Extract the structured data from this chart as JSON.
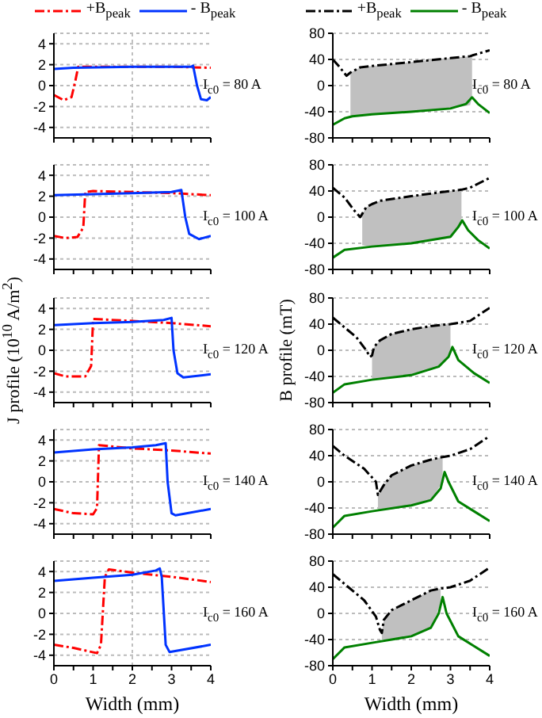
{
  "chart_data": [
    {
      "type": "line",
      "legend": "top",
      "annotations": [
        "I$_{c0}$ = 80 A"
      ],
      "xlim": [
        0,
        4
      ],
      "xticks": [
        0,
        {
          "value": 0.5,
          "label": null
        },
        1,
        {
          "value": 1.5,
          "label": null
        },
        2,
        {
          "value": 2.5,
          "label": null
        },
        3,
        {
          "value": 3.5,
          "label": null
        },
        4
      ],
      "ylim": [
        -5,
        5
      ],
      "yticks": [
        -4,
        -2,
        0,
        2,
        4
      ],
      "grid": "y",
      "tick_labels": "y",
      "ref_lines": [
        {
          "axis": "x",
          "value": 2,
          "color": "#c0c0c0",
          "line_style": "dotted"
        }
      ],
      "series": [
        {
          "name": "+B$_{peak}$",
          "color": "#ff0000",
          "line_style": "dashed",
          "x": [
            0,
            0.25,
            0.45,
            0.55,
            0.62,
            1,
            2,
            3,
            4
          ],
          "values": [
            -0.9,
            -1.4,
            -1.1,
            0.5,
            1.8,
            1.8,
            1.8,
            1.8,
            1.7
          ]
        },
        {
          "name": "- B$_{peak}$",
          "color": "#0033ff",
          "line_style": "solid",
          "x": [
            0,
            0.5,
            2,
            3.5,
            3.55,
            3.65,
            3.75,
            3.9,
            4
          ],
          "values": [
            1.6,
            1.7,
            1.8,
            1.8,
            1.9,
            0,
            -1.3,
            -1.4,
            -1.1
          ]
        }
      ]
    },
    {
      "type": "line",
      "legend": "top",
      "annotations": [
        "I$_{c0}$ = 80 A"
      ],
      "xlim": [
        0,
        4
      ],
      "xticks": [
        0,
        {
          "value": 0.5,
          "label": null
        },
        1,
        {
          "value": 1.5,
          "label": null
        },
        2,
        {
          "value": 2.5,
          "label": null
        },
        3,
        {
          "value": 3.5,
          "label": null
        },
        4
      ],
      "ylim": [
        -80,
        80
      ],
      "yticks": [
        -80,
        -40,
        0,
        40,
        80
      ],
      "grid": "y",
      "tick_labels": "y",
      "series": [
        {
          "name": "+B$_{peak}$",
          "color": "#000000",
          "line_style": "dashed",
          "x": [
            0,
            0.15,
            0.35,
            0.45,
            0.7,
            1,
            2,
            3,
            3.5,
            3.55,
            4
          ],
          "values": [
            40,
            30,
            15,
            20,
            28,
            30,
            36,
            42,
            45,
            46,
            54
          ],
          "lower": [
            null,
            null,
            null,
            -47,
            -46,
            -44,
            -40,
            -35,
            -30,
            -18,
            null
          ],
          "upper": [
            null,
            null,
            null,
            20,
            28,
            30,
            36,
            42,
            45,
            46,
            null
          ]
        },
        {
          "name": "- B$_{peak}$",
          "color": "#008000",
          "line_style": "solid",
          "x": [
            0,
            0.3,
            0.5,
            1,
            2,
            3,
            3.4,
            3.55,
            3.7,
            4
          ],
          "values": [
            -60,
            -50,
            -47,
            -44,
            -40,
            -35,
            -28,
            -18,
            -28,
            -42
          ]
        }
      ]
    },
    {
      "type": "line",
      "annotations": [
        "I$_{c0}$ = 100 A"
      ],
      "xlim": [
        0,
        4
      ],
      "xticks": [
        0,
        {
          "value": 0.5,
          "label": null
        },
        1,
        {
          "value": 1.5,
          "label": null
        },
        2,
        {
          "value": 2.5,
          "label": null
        },
        3,
        {
          "value": 3.5,
          "label": null
        },
        4
      ],
      "ylim": [
        -5,
        5
      ],
      "yticks": [
        -4,
        -2,
        0,
        2,
        4
      ],
      "grid": "y",
      "tick_labels": "y",
      "ref_lines": [
        {
          "axis": "x",
          "value": 2,
          "color": "#c0c0c0",
          "line_style": "dotted"
        }
      ],
      "series": [
        {
          "color": "#ff0000",
          "line_style": "dashed",
          "x": [
            0,
            0.3,
            0.6,
            0.75,
            0.8,
            1,
            2,
            3,
            4
          ],
          "values": [
            -1.8,
            -2,
            -1.9,
            -1,
            2.4,
            2.5,
            2.4,
            2.3,
            2.1
          ]
        },
        {
          "color": "#0033ff",
          "line_style": "solid",
          "x": [
            0,
            1,
            2,
            3,
            3.25,
            3.35,
            3.45,
            3.7,
            4
          ],
          "values": [
            2.1,
            2.2,
            2.3,
            2.4,
            2.6,
            0,
            -1.6,
            -2.1,
            -1.8
          ]
        }
      ]
    },
    {
      "type": "line",
      "annotations": [
        "I$_{c0}$ = 100 A"
      ],
      "xlim": [
        0,
        4
      ],
      "xticks": [
        0,
        {
          "value": 0.5,
          "label": null
        },
        1,
        {
          "value": 1.5,
          "label": null
        },
        2,
        {
          "value": 2.5,
          "label": null
        },
        3,
        {
          "value": 3.5,
          "label": null
        },
        4
      ],
      "ylim": [
        -80,
        80
      ],
      "yticks": [
        -80,
        -40,
        0,
        40,
        80
      ],
      "grid": "y",
      "tick_labels": "y",
      "series": [
        {
          "color": "#000000",
          "line_style": "dashed",
          "x": [
            0,
            0.3,
            0.55,
            0.7,
            0.75,
            0.85,
            1,
            1.2,
            2,
            3,
            3.28,
            3.5,
            4
          ],
          "values": [
            45,
            30,
            10,
            0,
            5,
            15,
            20,
            25,
            32,
            40,
            42,
            45,
            60
          ],
          "lower": [
            null,
            null,
            null,
            null,
            -43,
            -44,
            -44,
            -44,
            -40,
            -32,
            -8,
            null,
            null
          ],
          "upper": [
            null,
            null,
            null,
            null,
            5,
            15,
            20,
            25,
            32,
            40,
            42,
            null,
            null
          ]
        },
        {
          "color": "#008000",
          "line_style": "solid",
          "x": [
            0,
            0.3,
            1,
            2,
            3,
            3.2,
            3.3,
            3.45,
            3.7,
            4
          ],
          "values": [
            -62,
            -50,
            -45,
            -40,
            -30,
            -15,
            -5,
            -20,
            -35,
            -48
          ]
        }
      ]
    },
    {
      "type": "line",
      "ylabel": "J profile (10$^{10}$ A/m$^{2}$)",
      "annotations": [
        "I$_{c0}$ = 120 A"
      ],
      "xlim": [
        0,
        4
      ],
      "xticks": [
        0,
        {
          "value": 0.5,
          "label": null
        },
        1,
        {
          "value": 1.5,
          "label": null
        },
        2,
        {
          "value": 2.5,
          "label": null
        },
        3,
        {
          "value": 3.5,
          "label": null
        },
        4
      ],
      "ylim": [
        -5,
        5
      ],
      "yticks": [
        -4,
        -2,
        0,
        2,
        4
      ],
      "grid": "y",
      "tick_labels": "y",
      "ref_lines": [
        {
          "axis": "x",
          "value": 2,
          "color": "#c0c0c0",
          "line_style": "dotted"
        }
      ],
      "series": [
        {
          "color": "#ff0000",
          "line_style": "dashed",
          "x": [
            0,
            0.3,
            0.8,
            0.95,
            1,
            2,
            3,
            4
          ],
          "values": [
            -2.2,
            -2.5,
            -2.5,
            -1.5,
            3,
            2.8,
            2.6,
            2.3
          ]
        },
        {
          "color": "#0033ff",
          "line_style": "solid",
          "x": [
            0,
            1,
            2,
            2.8,
            3,
            3.05,
            3.15,
            3.3,
            4
          ],
          "values": [
            2.4,
            2.6,
            2.7,
            2.9,
            3.1,
            0,
            -2.2,
            -2.6,
            -2.3
          ]
        }
      ]
    },
    {
      "type": "line",
      "ylabel": "B profile (mT)",
      "annotations": [
        "I$_{c0}$ = 120 A"
      ],
      "xlim": [
        0,
        4
      ],
      "xticks": [
        0,
        {
          "value": 0.5,
          "label": null
        },
        1,
        {
          "value": 1.5,
          "label": null
        },
        2,
        {
          "value": 2.5,
          "label": null
        },
        3,
        {
          "value": 3.5,
          "label": null
        },
        4
      ],
      "ylim": [
        -80,
        80
      ],
      "yticks": [
        -80,
        -40,
        0,
        40,
        80
      ],
      "grid": "y",
      "tick_labels": "y",
      "series": [
        {
          "color": "#000000",
          "line_style": "dashed",
          "x": [
            0,
            0.3,
            0.6,
            0.85,
            0.95,
            1,
            1.05,
            1.2,
            1.5,
            2,
            2.5,
            2.8,
            3,
            3.5,
            4
          ],
          "values": [
            50,
            35,
            20,
            0,
            -10,
            -8,
            5,
            15,
            25,
            32,
            37,
            39,
            40,
            45,
            65
          ],
          "lower": [
            null,
            null,
            null,
            null,
            null,
            -44,
            -44,
            -43,
            -41,
            -38,
            -30,
            -20,
            -2,
            null,
            null
          ],
          "upper": [
            null,
            null,
            null,
            null,
            null,
            -8,
            5,
            15,
            25,
            32,
            37,
            39,
            40,
            null,
            null
          ]
        },
        {
          "color": "#008000",
          "line_style": "solid",
          "x": [
            0,
            0.3,
            1,
            2,
            2.7,
            2.95,
            3.05,
            3.2,
            3.6,
            4
          ],
          "values": [
            -65,
            -52,
            -45,
            -38,
            -25,
            -10,
            5,
            -15,
            -35,
            -50
          ]
        }
      ]
    },
    {
      "type": "line",
      "annotations": [
        "I$_{c0}$ = 140 A"
      ],
      "xlim": [
        0,
        4
      ],
      "xticks": [
        0,
        {
          "value": 0.5,
          "label": null
        },
        1,
        {
          "value": 1.5,
          "label": null
        },
        2,
        {
          "value": 2.5,
          "label": null
        },
        3,
        {
          "value": 3.5,
          "label": null
        },
        4
      ],
      "ylim": [
        -5,
        5
      ],
      "yticks": [
        -4,
        -2,
        0,
        2,
        4
      ],
      "grid": "y",
      "tick_labels": "y",
      "ref_lines": [
        {
          "axis": "x",
          "value": 2,
          "color": "#c0c0c0",
          "line_style": "dotted"
        }
      ],
      "series": [
        {
          "color": "#ff0000",
          "line_style": "dashed",
          "x": [
            0,
            0.5,
            1,
            1.1,
            1.15,
            2,
            3,
            4
          ],
          "values": [
            -2.6,
            -3,
            -3.1,
            -2.5,
            3.5,
            3.2,
            3,
            2.7
          ]
        },
        {
          "color": "#0033ff",
          "line_style": "solid",
          "x": [
            0,
            1,
            2,
            2.6,
            2.85,
            2.9,
            3,
            3.1,
            4
          ],
          "values": [
            2.8,
            3.1,
            3.3,
            3.5,
            3.7,
            0,
            -3,
            -3.2,
            -2.6
          ]
        }
      ]
    },
    {
      "type": "line",
      "annotations": [
        "I$_{c0}$ = 140 A"
      ],
      "xlim": [
        0,
        4
      ],
      "xticks": [
        0,
        {
          "value": 0.5,
          "label": null
        },
        1,
        {
          "value": 1.5,
          "label": null
        },
        2,
        {
          "value": 2.5,
          "label": null
        },
        3,
        {
          "value": 3.5,
          "label": null
        },
        4
      ],
      "ylim": [
        -80,
        80
      ],
      "yticks": [
        -80,
        -40,
        0,
        40,
        80
      ],
      "grid": "y",
      "tick_labels": "y",
      "series": [
        {
          "color": "#000000",
          "line_style": "dashed",
          "x": [
            0,
            0.3,
            0.8,
            1.1,
            1.15,
            1.3,
            1.5,
            2,
            2.5,
            2.8,
            3,
            3.5,
            4
          ],
          "values": [
            55,
            40,
            20,
            0,
            -20,
            -5,
            10,
            25,
            34,
            38,
            40,
            50,
            70
          ],
          "lower": [
            null,
            null,
            null,
            null,
            -44,
            -43,
            -42,
            -36,
            -28,
            0,
            null,
            null,
            null
          ],
          "upper": [
            null,
            null,
            null,
            null,
            -20,
            -5,
            10,
            25,
            34,
            38,
            null,
            null,
            null
          ]
        },
        {
          "color": "#008000",
          "line_style": "solid",
          "x": [
            0,
            0.3,
            1,
            2,
            2.5,
            2.75,
            2.85,
            2.95,
            3.2,
            3.6,
            4
          ],
          "values": [
            -70,
            -52,
            -45,
            -36,
            -28,
            -10,
            15,
            0,
            -30,
            -45,
            -60
          ]
        }
      ]
    },
    {
      "type": "line",
      "xlabel": "Width (mm)",
      "annotations": [
        "I$_{c0}$ = 160 A"
      ],
      "xlim": [
        0,
        4
      ],
      "xticks": [
        0,
        {
          "value": 0.5,
          "label": null
        },
        1,
        {
          "value": 1.5,
          "label": null
        },
        2,
        {
          "value": 2.5,
          "label": null
        },
        3,
        {
          "value": 3.5,
          "label": null
        },
        4
      ],
      "ylim": [
        -5,
        5
      ],
      "yticks": [
        -4,
        -2,
        0,
        2,
        4
      ],
      "grid": "y",
      "ref_lines": [
        {
          "axis": "x",
          "value": 2,
          "color": "#c0c0c0",
          "line_style": "dotted"
        }
      ],
      "series": [
        {
          "color": "#ff0000",
          "line_style": "dashed",
          "x": [
            0,
            0.5,
            1.1,
            1.2,
            1.3,
            1.4,
            2,
            3,
            4
          ],
          "values": [
            -3,
            -3.3,
            -3.8,
            -3,
            3.5,
            4.2,
            3.9,
            3.5,
            3
          ]
        },
        {
          "color": "#0033ff",
          "line_style": "solid",
          "x": [
            0,
            1,
            2,
            2.6,
            2.7,
            2.75,
            2.85,
            2.95,
            4
          ],
          "values": [
            3.1,
            3.4,
            3.7,
            4.1,
            4.3,
            3.5,
            -3,
            -3.7,
            -3
          ]
        }
      ]
    },
    {
      "type": "line",
      "xlabel": "Width (mm)",
      "annotations": [
        "I$_{c0}$ = 160 A"
      ],
      "xlim": [
        0,
        4
      ],
      "xticks": [
        0,
        {
          "value": 0.5,
          "label": null
        },
        1,
        {
          "value": 1.5,
          "label": null
        },
        2,
        {
          "value": 2.5,
          "label": null
        },
        3,
        {
          "value": 3.5,
          "label": null
        },
        4
      ],
      "ylim": [
        -80,
        80
      ],
      "yticks": [
        -80,
        -40,
        0,
        40,
        80
      ],
      "grid": "y",
      "series": [
        {
          "color": "#000000",
          "line_style": "dashed",
          "x": [
            0,
            0.3,
            0.8,
            1.1,
            1.2,
            1.25,
            1.3,
            1.5,
            2,
            2.5,
            2.75,
            3,
            3.5,
            4
          ],
          "values": [
            60,
            45,
            20,
            -5,
            -25,
            -30,
            -10,
            5,
            20,
            35,
            38,
            40,
            50,
            70
          ],
          "lower": [
            null,
            null,
            null,
            null,
            null,
            -40,
            -40,
            -40,
            -35,
            -22,
            15,
            null,
            null,
            null
          ],
          "upper": [
            null,
            null,
            null,
            null,
            null,
            -30,
            -10,
            5,
            20,
            35,
            38,
            null,
            null,
            null
          ]
        },
        {
          "color": "#008000",
          "line_style": "solid",
          "x": [
            0,
            0.3,
            1,
            2,
            2.5,
            2.7,
            2.8,
            2.9,
            3.2,
            3.6,
            4
          ],
          "values": [
            -70,
            -52,
            -45,
            -35,
            -22,
            0,
            25,
            0,
            -35,
            -50,
            -65
          ]
        }
      ]
    }
  ]
}
